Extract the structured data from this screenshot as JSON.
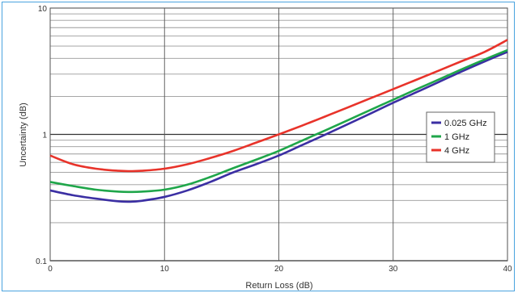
{
  "chart_data": {
    "type": "line",
    "title": "",
    "xlabel": "Return Loss (dB)",
    "ylabel": "Uncertainty (dB)",
    "xlim": [
      0,
      40
    ],
    "ylim": [
      0.1,
      10
    ],
    "y_scale": "log",
    "x_ticks": [
      "0",
      "10",
      "20",
      "30",
      "40"
    ],
    "y_ticks": [
      "0.1",
      "1",
      "10"
    ],
    "grid": true,
    "legend_position": "right",
    "x": [
      0,
      2,
      4,
      6,
      7,
      8,
      10,
      12,
      14,
      16,
      18,
      20,
      22,
      24,
      26,
      28,
      30,
      32,
      34,
      36,
      38,
      40
    ],
    "series": [
      {
        "name": "0.025 GHz",
        "color": "#3b2fa3",
        "values": [
          0.36,
          0.33,
          0.31,
          0.295,
          0.293,
          0.298,
          0.32,
          0.36,
          0.42,
          0.5,
          0.58,
          0.68,
          0.82,
          0.99,
          1.2,
          1.46,
          1.78,
          2.15,
          2.6,
          3.15,
          3.78,
          4.5
        ]
      },
      {
        "name": "1 GHz",
        "color": "#1fa64a",
        "values": [
          0.42,
          0.39,
          0.365,
          0.352,
          0.35,
          0.352,
          0.365,
          0.4,
          0.46,
          0.54,
          0.63,
          0.74,
          0.89,
          1.07,
          1.29,
          1.56,
          1.88,
          2.27,
          2.72,
          3.28,
          3.92,
          4.65
        ]
      },
      {
        "name": "4 GHz",
        "color": "#e8332a",
        "values": [
          0.68,
          0.58,
          0.535,
          0.515,
          0.512,
          0.515,
          0.535,
          0.58,
          0.65,
          0.74,
          0.86,
          1.0,
          1.17,
          1.38,
          1.63,
          1.93,
          2.28,
          2.7,
          3.2,
          3.8,
          4.5,
          5.6
        ]
      }
    ]
  }
}
